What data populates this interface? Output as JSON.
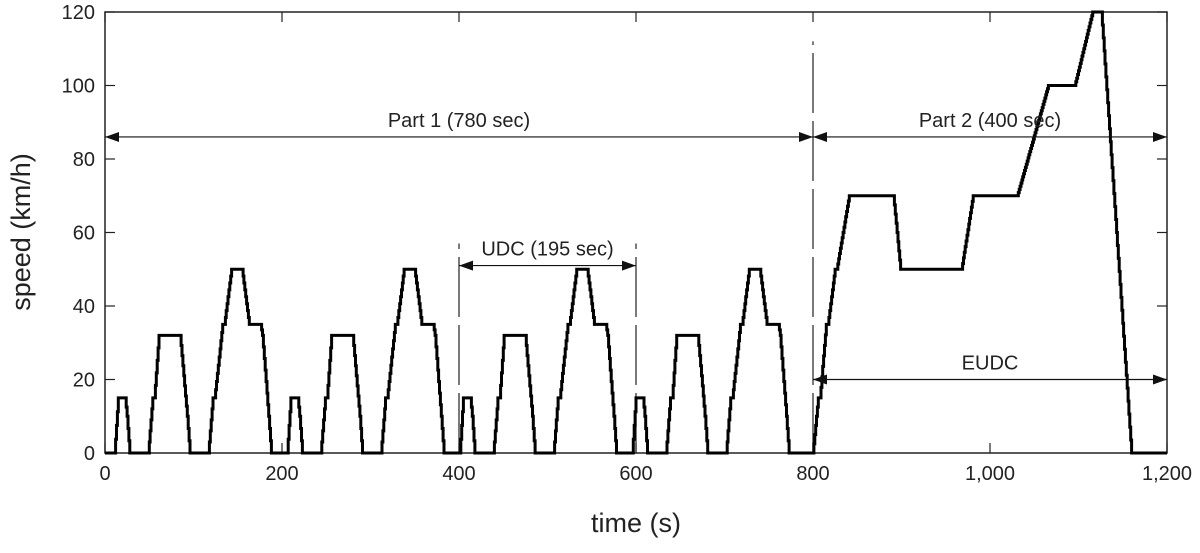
{
  "chart_data": {
    "type": "line",
    "title": "",
    "xlabel": "time (s)",
    "ylabel": "speed (km/h)",
    "xlim": [
      0,
      1200
    ],
    "ylim": [
      0,
      120
    ],
    "xticks": [
      0,
      200,
      400,
      600,
      800,
      1000,
      1200
    ],
    "xtick_labels": [
      "0",
      "200",
      "400",
      "600",
      "800",
      "1,000",
      "1,200"
    ],
    "yticks": [
      0,
      20,
      40,
      60,
      80,
      100,
      120
    ],
    "ytick_labels": [
      "0",
      "20",
      "40",
      "60",
      "80",
      "100",
      "120"
    ],
    "grid": false,
    "line_color": "#000000",
    "ece_segment_points": [
      [
        0,
        0
      ],
      [
        11,
        0
      ],
      [
        15,
        15
      ],
      [
        23,
        15
      ],
      [
        25,
        10
      ],
      [
        28,
        0
      ],
      [
        49,
        0
      ],
      [
        54,
        15
      ],
      [
        56,
        15
      ],
      [
        61,
        32
      ],
      [
        85,
        32
      ],
      [
        93,
        10
      ],
      [
        96,
        0
      ],
      [
        117,
        0
      ],
      [
        122,
        15
      ],
      [
        124,
        15
      ],
      [
        133,
        35
      ],
      [
        135,
        35
      ],
      [
        143,
        50
      ],
      [
        155,
        50
      ],
      [
        163,
        35
      ],
      [
        176,
        35
      ],
      [
        178,
        32
      ],
      [
        185,
        10
      ],
      [
        188,
        0
      ],
      [
        195,
        0
      ]
    ],
    "ece_repeats": 4,
    "eudc_points": [
      [
        780,
        0
      ],
      [
        800,
        0
      ],
      [
        806,
        15
      ],
      [
        808,
        15
      ],
      [
        815,
        35
      ],
      [
        817,
        35
      ],
      [
        825,
        50
      ],
      [
        827,
        50
      ],
      [
        841,
        70
      ],
      [
        891,
        70
      ],
      [
        899,
        50
      ],
      [
        968,
        50
      ],
      [
        981,
        70
      ],
      [
        1031,
        70
      ],
      [
        1066,
        100
      ],
      [
        1096,
        100
      ],
      [
        1116,
        120
      ],
      [
        1126,
        120
      ],
      [
        1160,
        0
      ],
      [
        1200,
        0
      ]
    ],
    "annotations": [
      {
        "label": "Part 1 (780 sec)",
        "from": 0,
        "to": 800,
        "speed": 86
      },
      {
        "label": "Part 2 (400 sec)",
        "from": 800,
        "to": 1200,
        "speed": 86
      },
      {
        "label": "UDC (195 sec)",
        "from": 400,
        "to": 600,
        "speed": 51
      },
      {
        "label": "EUDC",
        "from": 800,
        "to": 1200,
        "speed": 20
      }
    ],
    "dashed_markers": [
      {
        "time": 400,
        "from_speed": 0,
        "to_speed": 57
      },
      {
        "time": 600,
        "from_speed": 0,
        "to_speed": 57
      },
      {
        "time": 800,
        "from_speed": 0,
        "to_speed": 112
      }
    ]
  }
}
